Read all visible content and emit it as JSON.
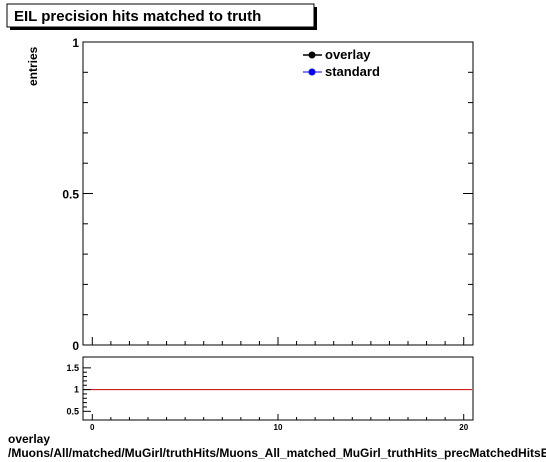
{
  "title": "EIL precision hits matched to truth",
  "footer": {
    "line1": "overlay",
    "line2": "/Muons/All/matched/MuGirl/truthHits/Muons_All_matched_MuGirl_truthHits_precMatchedHitsEIL"
  },
  "chart_data": [
    {
      "type": "line",
      "title": "EIL precision hits matched to truth",
      "xlabel": "",
      "ylabel": "entries",
      "xlim": [
        -0.5,
        20.5
      ],
      "ylim": [
        0,
        1
      ],
      "yticks": [
        "0",
        "0.5",
        "1"
      ],
      "legend_position": "top-right",
      "series": [
        {
          "name": "overlay",
          "color": "#000000",
          "marker": "circle",
          "values": []
        },
        {
          "name": "standard",
          "color": "#0000ff",
          "marker": "circle",
          "values": []
        }
      ]
    },
    {
      "type": "line",
      "title": "",
      "xlabel": "",
      "ylabel": "",
      "xlim": [
        -0.5,
        20.5
      ],
      "ylim": [
        0.3,
        1.75
      ],
      "yticks": [
        "0.5",
        "1",
        "1.5"
      ],
      "xticks": [
        "0",
        "10",
        "20"
      ],
      "reference_line": {
        "y": 1,
        "color": "#cc0000"
      },
      "series": []
    }
  ]
}
